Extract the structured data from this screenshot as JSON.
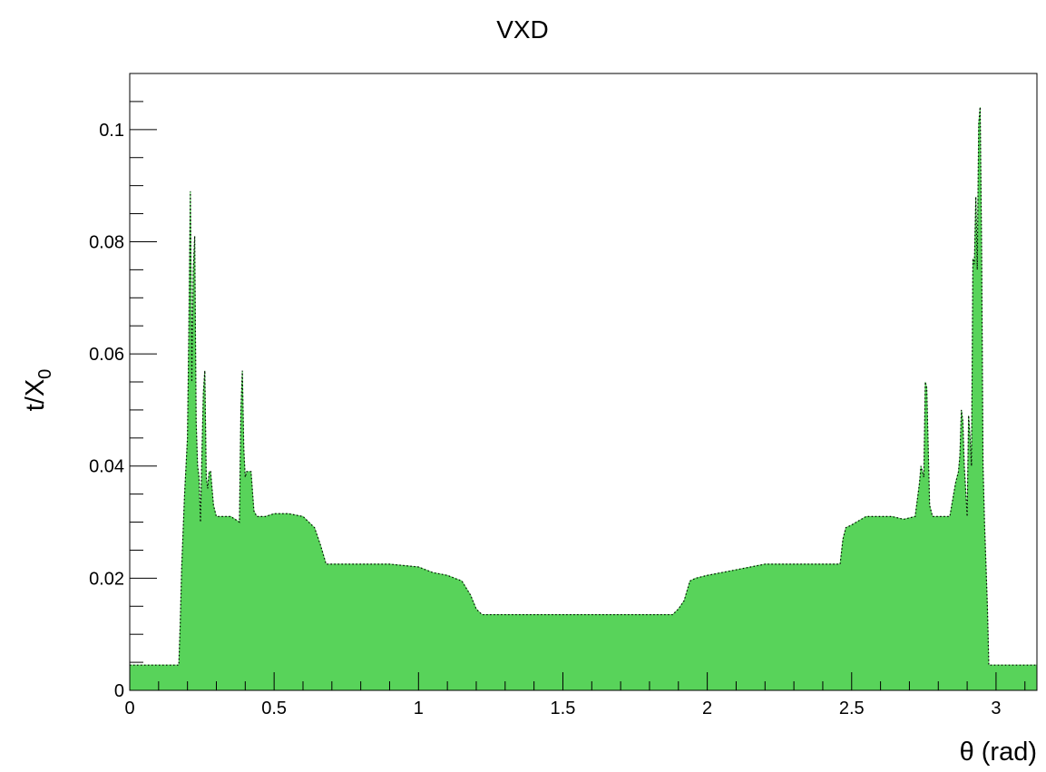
{
  "chart_data": {
    "type": "area",
    "title": "VXD",
    "xlabel": "θ (rad)",
    "ylabel": {
      "main": "t/X",
      "sub": "0"
    },
    "xlim": [
      0,
      3.1416
    ],
    "ylim": [
      0,
      0.11
    ],
    "xticks": [
      {
        "value": 0,
        "label": "0"
      },
      {
        "value": 0.5,
        "label": "0.5"
      },
      {
        "value": 1,
        "label": "1"
      },
      {
        "value": 1.5,
        "label": "1.5"
      },
      {
        "value": 2,
        "label": "2"
      },
      {
        "value": 2.5,
        "label": "2.5"
      },
      {
        "value": 3,
        "label": "3"
      }
    ],
    "yticks": [
      {
        "value": 0,
        "label": "0"
      },
      {
        "value": 0.02,
        "label": "0.02"
      },
      {
        "value": 0.04,
        "label": "0.04"
      },
      {
        "value": 0.06,
        "label": "0.06"
      },
      {
        "value": 0.08,
        "label": "0.08"
      },
      {
        "value": 0.1,
        "label": "0.1"
      }
    ],
    "grid": false,
    "fill_color": "#58d35a",
    "marker_color": "#000000",
    "series": [
      {
        "x": [
          0.0,
          0.17,
          0.175,
          0.18,
          0.19,
          0.2,
          0.205,
          0.21,
          0.215,
          0.22,
          0.225,
          0.23,
          0.235,
          0.24,
          0.245,
          0.25,
          0.255,
          0.26,
          0.265,
          0.27,
          0.275,
          0.28,
          0.29,
          0.3,
          0.32,
          0.35,
          0.38,
          0.385,
          0.39,
          0.395,
          0.4,
          0.405,
          0.41,
          0.42,
          0.43,
          0.44,
          0.47,
          0.5,
          0.55,
          0.6,
          0.64,
          0.66,
          0.68,
          0.7,
          0.8,
          0.9,
          1.0,
          1.05,
          1.1,
          1.15,
          1.18,
          1.2,
          1.22,
          1.24,
          1.3,
          1.5,
          1.7,
          1.88,
          1.9,
          1.92,
          1.94,
          1.96,
          2.0,
          2.05,
          2.1,
          2.2,
          2.3,
          2.4,
          2.46,
          2.47,
          2.48,
          2.5,
          2.55,
          2.6,
          2.64,
          2.68,
          2.72,
          2.735,
          2.74,
          2.75,
          2.755,
          2.76,
          2.77,
          2.78,
          2.8,
          2.84,
          2.86,
          2.87,
          2.875,
          2.88,
          2.885,
          2.89,
          2.9,
          2.905,
          2.91,
          2.915,
          2.92,
          2.925,
          2.93,
          2.935,
          2.94,
          2.945,
          2.95,
          2.955,
          2.96,
          2.97,
          2.975,
          3.1416
        ],
        "y": [
          0.0045,
          0.0045,
          0.012,
          0.022,
          0.035,
          0.045,
          0.065,
          0.089,
          0.055,
          0.075,
          0.081,
          0.048,
          0.04,
          0.038,
          0.03,
          0.042,
          0.053,
          0.057,
          0.038,
          0.036,
          0.039,
          0.039,
          0.033,
          0.031,
          0.031,
          0.031,
          0.03,
          0.05,
          0.057,
          0.043,
          0.038,
          0.039,
          0.039,
          0.039,
          0.032,
          0.031,
          0.031,
          0.0315,
          0.0315,
          0.031,
          0.029,
          0.026,
          0.0225,
          0.0225,
          0.0225,
          0.0225,
          0.022,
          0.021,
          0.0205,
          0.0195,
          0.017,
          0.0145,
          0.0135,
          0.0135,
          0.0135,
          0.0135,
          0.0135,
          0.0135,
          0.0145,
          0.016,
          0.0195,
          0.02,
          0.0205,
          0.021,
          0.0215,
          0.0225,
          0.0225,
          0.0225,
          0.0225,
          0.027,
          0.029,
          0.0295,
          0.031,
          0.031,
          0.031,
          0.0305,
          0.031,
          0.037,
          0.04,
          0.038,
          0.055,
          0.054,
          0.033,
          0.031,
          0.031,
          0.031,
          0.037,
          0.039,
          0.042,
          0.05,
          0.048,
          0.04,
          0.031,
          0.049,
          0.045,
          0.04,
          0.077,
          0.076,
          0.088,
          0.075,
          0.101,
          0.104,
          0.079,
          0.04,
          0.03,
          0.015,
          0.0045,
          0.0045
        ]
      }
    ]
  }
}
